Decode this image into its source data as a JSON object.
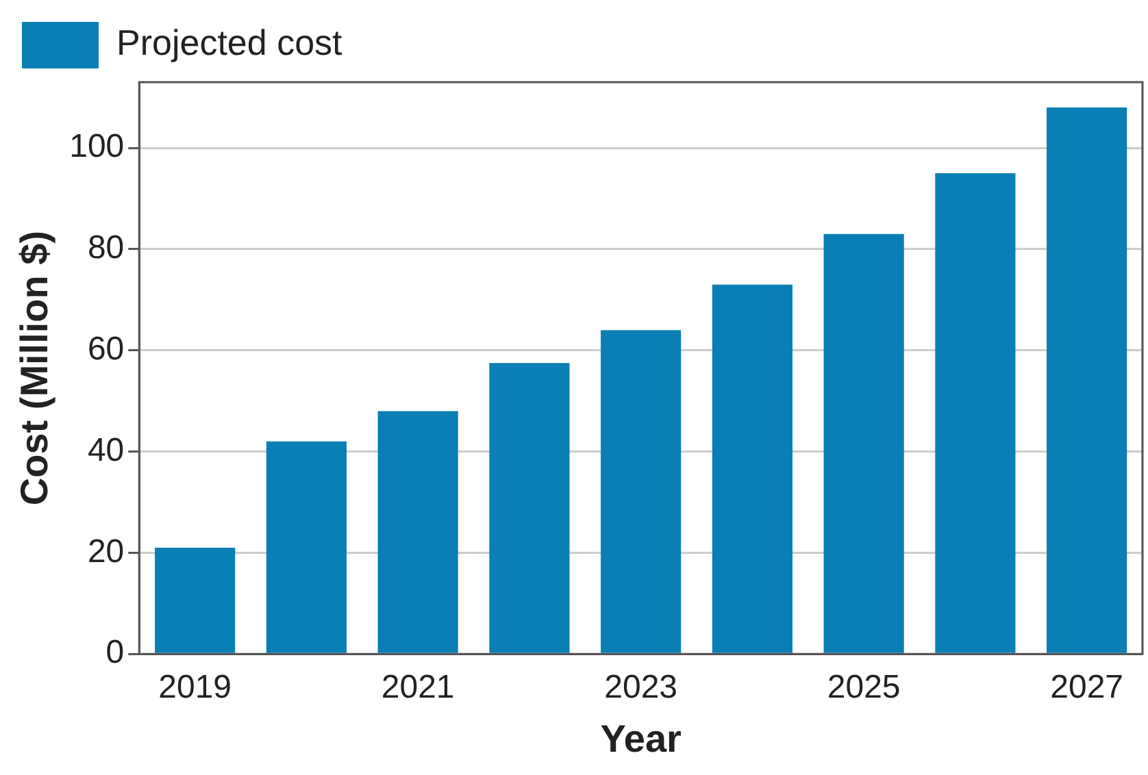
{
  "chart_data": {
    "type": "bar",
    "xlabel": "Year",
    "ylabel": "Cost (Million $)",
    "categories": [
      "2019",
      null,
      "2021",
      null,
      "2023",
      null,
      "2025",
      null,
      "2027"
    ],
    "series": [
      {
        "name": "Projected cost",
        "color": "#0a7fb5",
        "values": [
          21,
          42,
          48,
          57.5,
          64,
          73,
          83,
          95,
          108
        ]
      }
    ],
    "ylim": [
      0,
      113
    ],
    "yticks": [
      0,
      20,
      40,
      60,
      80,
      100
    ],
    "grid": "y",
    "legend": "top left"
  }
}
